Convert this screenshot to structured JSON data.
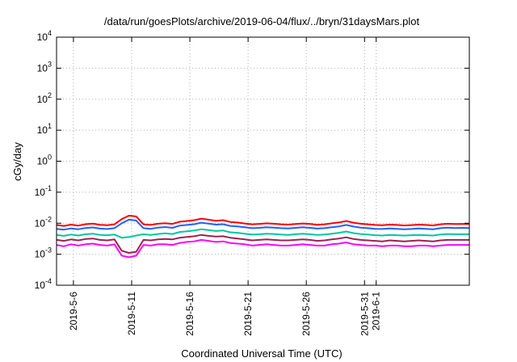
{
  "chart_data": {
    "type": "line",
    "title": "/data/run/goesPlots/archive/2019-06-04/flux/../bryn/31daysMars.plot",
    "xlabel": "Coordinated Universal Time (UTC)",
    "ylabel": "cGy/day",
    "yscale": "log",
    "ylim_exp": [
      -4,
      4
    ],
    "ytick_base": "10",
    "yticks_exp": [
      -4,
      -3,
      -2,
      -1,
      0,
      1,
      2,
      3,
      4
    ],
    "xlim_days": [
      4.55,
      40.0
    ],
    "x_axis_start_date": "2019-05-01",
    "xticks": [
      {
        "day": 6,
        "label": "2019-5-6"
      },
      {
        "day": 11,
        "label": "2019-5-11"
      },
      {
        "day": 16,
        "label": "2019-5-16"
      },
      {
        "day": 21,
        "label": "2019-5-21"
      },
      {
        "day": 26,
        "label": "2019-5-26"
      },
      {
        "day": 31,
        "label": "2019-5-31"
      },
      {
        "day": 32,
        "label": "2019-6-1"
      }
    ],
    "grid": true,
    "legend": "none",
    "series": [
      {
        "color": "#ff0000",
        "values": [
          0.0088,
          0.0082,
          0.009,
          0.0084,
          0.0093,
          0.0097,
          0.0089,
          0.0086,
          0.0092,
          0.0135,
          0.0175,
          0.0165,
          0.0092,
          0.0088,
          0.0096,
          0.01,
          0.0095,
          0.0112,
          0.0118,
          0.0125,
          0.014,
          0.013,
          0.012,
          0.0125,
          0.011,
          0.0105,
          0.0098,
          0.0092,
          0.0095,
          0.0099,
          0.0096,
          0.0092,
          0.009,
          0.0094,
          0.0098,
          0.0095,
          0.0089,
          0.0092,
          0.0099,
          0.0106,
          0.0118,
          0.0104,
          0.0096,
          0.0092,
          0.0088,
          0.0086,
          0.009,
          0.0088,
          0.0085,
          0.0087,
          0.009,
          0.0088,
          0.0085,
          0.0092,
          0.0096,
          0.0094,
          0.0095,
          0.0094
        ]
      },
      {
        "color": "#2060ff",
        "values": [
          0.0066,
          0.0062,
          0.0068,
          0.0064,
          0.007,
          0.0073,
          0.0067,
          0.0065,
          0.0069,
          0.01,
          0.013,
          0.0122,
          0.0069,
          0.0066,
          0.0072,
          0.0075,
          0.0071,
          0.0084,
          0.0088,
          0.0093,
          0.0104,
          0.0097,
          0.009,
          0.0093,
          0.0082,
          0.0079,
          0.0074,
          0.0069,
          0.0071,
          0.0074,
          0.0072,
          0.0069,
          0.0068,
          0.0071,
          0.0074,
          0.0071,
          0.0067,
          0.0069,
          0.0074,
          0.0079,
          0.0088,
          0.0078,
          0.0072,
          0.0069,
          0.0066,
          0.0065,
          0.0068,
          0.0066,
          0.0064,
          0.0065,
          0.0068,
          0.0066,
          0.0064,
          0.0069,
          0.0072,
          0.007,
          0.0071,
          0.007
        ]
      },
      {
        "color": "#00c8a0",
        "values": [
          0.0042,
          0.0039,
          0.0043,
          0.004,
          0.0044,
          0.0046,
          0.0042,
          0.0041,
          0.0043,
          0.0034,
          0.0036,
          0.004,
          0.0044,
          0.0042,
          0.0045,
          0.0047,
          0.0045,
          0.0052,
          0.0055,
          0.0058,
          0.0064,
          0.006,
          0.0056,
          0.0058,
          0.0051,
          0.0049,
          0.0046,
          0.0043,
          0.0044,
          0.0046,
          0.0045,
          0.0043,
          0.0042,
          0.0044,
          0.0046,
          0.0044,
          0.0042,
          0.0043,
          0.0046,
          0.0049,
          0.0054,
          0.0048,
          0.0045,
          0.0043,
          0.0041,
          0.004,
          0.0042,
          0.0041,
          0.004,
          0.0041,
          0.0042,
          0.0041,
          0.004,
          0.0043,
          0.0045,
          0.0044,
          0.0044,
          0.0044
        ]
      },
      {
        "color": "#a02050",
        "values": [
          0.0029,
          0.0027,
          0.003,
          0.0028,
          0.0031,
          0.0032,
          0.0029,
          0.0028,
          0.003,
          0.0013,
          0.0011,
          0.0012,
          0.0029,
          0.0028,
          0.003,
          0.0031,
          0.003,
          0.0034,
          0.0036,
          0.0038,
          0.0042,
          0.0039,
          0.0037,
          0.0038,
          0.0034,
          0.0032,
          0.003,
          0.0028,
          0.0029,
          0.003,
          0.0029,
          0.0028,
          0.0028,
          0.0029,
          0.003,
          0.0029,
          0.0027,
          0.0028,
          0.003,
          0.0032,
          0.0035,
          0.0031,
          0.0029,
          0.0028,
          0.0027,
          0.0026,
          0.0028,
          0.0027,
          0.0026,
          0.0027,
          0.0028,
          0.0027,
          0.0026,
          0.0028,
          0.0029,
          0.0029,
          0.0029,
          0.0029
        ]
      },
      {
        "color": "#ff00ff",
        "values": [
          0.002,
          0.0018,
          0.0021,
          0.0019,
          0.0021,
          0.0022,
          0.002,
          0.0019,
          0.0021,
          0.0009,
          0.0008,
          0.0009,
          0.002,
          0.0019,
          0.0021,
          0.0021,
          0.002,
          0.0023,
          0.0025,
          0.0026,
          0.0029,
          0.0027,
          0.0025,
          0.0026,
          0.0023,
          0.0022,
          0.0021,
          0.0019,
          0.002,
          0.0021,
          0.002,
          0.0019,
          0.0019,
          0.002,
          0.0021,
          0.002,
          0.0019,
          0.0019,
          0.0021,
          0.0022,
          0.0024,
          0.0021,
          0.002,
          0.0019,
          0.0019,
          0.0018,
          0.0019,
          0.0019,
          0.0018,
          0.0018,
          0.0019,
          0.0019,
          0.0018,
          0.0019,
          0.002,
          0.002,
          0.002,
          0.002
        ]
      }
    ]
  }
}
